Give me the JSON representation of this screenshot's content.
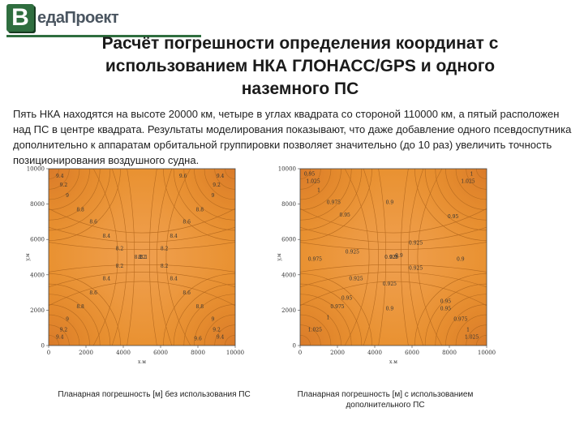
{
  "header": {
    "logo_letter": "В",
    "logo_text": "едаПроект",
    "brand_color": "#2f6e3f",
    "title_lines": [
      "Расчёт погрешности определения координат с",
      "использованием  НКА ГЛОНАСС/GPS и одного",
      "наземного ПС"
    ]
  },
  "description": "Пять НКА находятся на высоте 20000 км, четыре в углах квадрата со стороной 110000 км, а пятый расположен над ПС в центре квадрата. Результаты моделирования показывают, что даже добавление одного псевдоспутника дополнительно к аппаратам орбитальной группировки позволяет значительно (до 10 раз) увеличить точность позиционирования воздушного судна.",
  "chart_data": [
    {
      "type": "heatmap",
      "xlabel": "x,м",
      "ylabel": "y,м",
      "xlim": [
        0,
        10000
      ],
      "ylim": [
        0,
        10000
      ],
      "x_ticks": [
        "0",
        "2000",
        "4000",
        "6000",
        "8000",
        "10000"
      ],
      "y_ticks": [
        "0",
        "2000",
        "4000",
        "6000",
        "8000",
        "10000"
      ],
      "contour_labels": [
        "9.4",
        "9.2",
        "9",
        "8.8",
        "8.6",
        "8.4",
        "8.2",
        "8.2",
        "8.4",
        "8.6",
        "8.8",
        "9",
        "9.2",
        "9.4",
        "9.6",
        "9.4",
        "9.2",
        "9",
        "8.8",
        "8.6",
        "8.4",
        "8.2",
        "8.2",
        "8.4",
        "8.6",
        "8.8",
        "9",
        "9.2",
        "9.4",
        "9.6",
        "8.2",
        "8.2",
        "8.1"
      ],
      "colors": {
        "base": "#e8902e",
        "center": "#f0a050",
        "corner": "#d97a2a"
      },
      "caption": "Планарная погрешность [м] без использования ПС"
    },
    {
      "type": "heatmap",
      "xlabel": "x,м",
      "ylabel": "y,м",
      "xlim": [
        0,
        10000
      ],
      "ylim": [
        0,
        10000
      ],
      "x_ticks": [
        "0",
        "2000",
        "4000",
        "6000",
        "8000",
        "10000"
      ],
      "y_ticks": [
        "0",
        "2000",
        "4000",
        "6000",
        "8000",
        "10000"
      ],
      "contour_labels": [
        "0.95",
        "1.025",
        "1",
        "0.975",
        "0.9",
        "0.95",
        "0.925",
        "0.975",
        "1",
        "1.025",
        "0.95",
        "0.925",
        "0.9",
        "0.9",
        "0.925",
        "0.95",
        "0.975",
        "1",
        "1.025",
        "0.9",
        "0.925",
        "0.95",
        "0.975",
        "1",
        "1.025",
        "0.9",
        "0.925",
        "0.95",
        "0.925"
      ],
      "colors": {
        "base": "#e8902e",
        "center": "#f0a050",
        "corner": "#d97a2a"
      },
      "caption": "Планарная погрешность [м] с использованием дополнительного ПС"
    }
  ]
}
